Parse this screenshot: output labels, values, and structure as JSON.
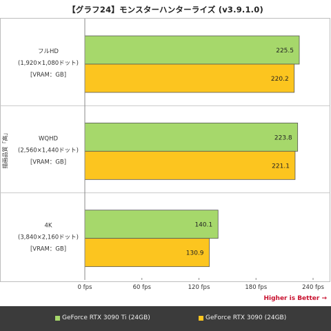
{
  "title": "【グラフ24】モンスターハンターライズ (v3.9.1.0)",
  "higher_note": "Higher is Better →",
  "colors": {
    "series_1": "#a6d86b",
    "series_2": "#fcc51f",
    "bar_stroke": "#555555"
  },
  "chart_data": {
    "type": "bar",
    "orientation": "horizontal",
    "ylabel": "描画品質「高」",
    "categories": [
      [
        "フルHD",
        "(1,920×1,080ドット)",
        "[VRAM：GB]"
      ],
      [
        "WQHD",
        "(2,560×1,440ドット)",
        "[VRAM：GB]"
      ],
      [
        "4K",
        "(3,840×2,160ドット)",
        "[VRAM：GB]"
      ]
    ],
    "series": [
      {
        "name": "GeForce RTX 3090 Ti (24GB)",
        "values": [
          225.5,
          223.8,
          140.1
        ]
      },
      {
        "name": "GeForce RTX 3090 (24GB)",
        "values": [
          220.2,
          221.1,
          130.9
        ]
      }
    ],
    "xlim": [
      0,
      240
    ],
    "xticks": [
      0,
      60,
      120,
      180,
      240
    ],
    "xtick_labels": [
      "0 fps",
      "60 fps",
      "120 fps",
      "180 fps",
      "240 fps"
    ],
    "grid": false,
    "legend": "bottom"
  }
}
